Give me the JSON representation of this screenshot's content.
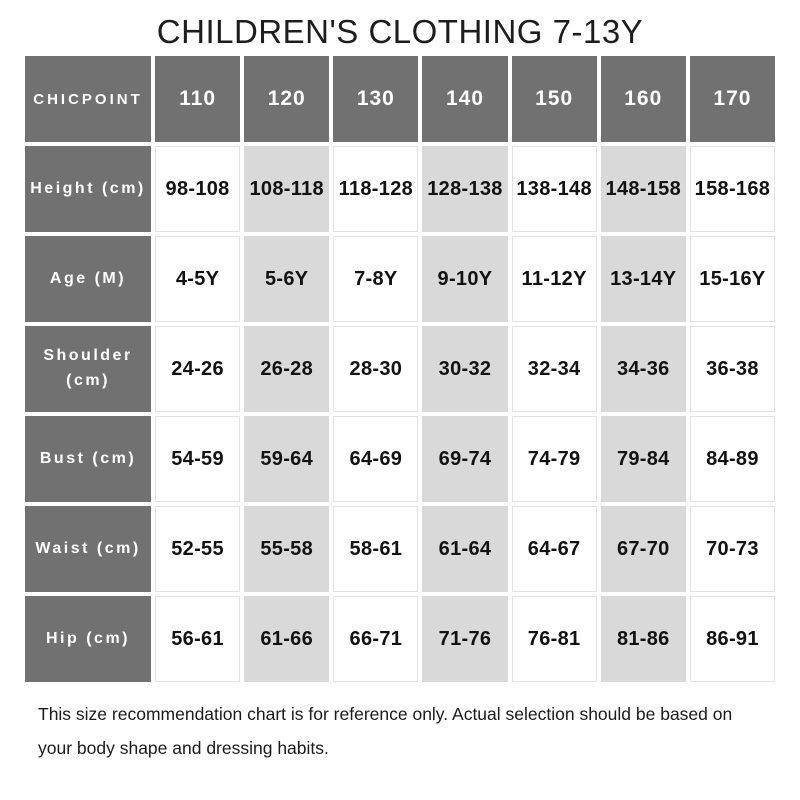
{
  "title": "CHILDREN'S CLOTHING 7-13Y",
  "chart_data": {
    "type": "table",
    "title": "CHILDREN'S CLOTHING 7-13Y",
    "corner_label": "CHICPOINT",
    "columns": [
      "110",
      "120",
      "130",
      "140",
      "150",
      "160",
      "170"
    ],
    "highlighted_columns": [
      "120",
      "140",
      "160"
    ],
    "rows": [
      {
        "label": "Height (cm)",
        "values": [
          "98-108",
          "108-118",
          "118-128",
          "128-138",
          "138-148",
          "148-158",
          "158-168"
        ]
      },
      {
        "label": "Age (M)",
        "values": [
          "4-5Y",
          "5-6Y",
          "7-8Y",
          "9-10Y",
          "11-12Y",
          "13-14Y",
          "15-16Y"
        ]
      },
      {
        "label": "Shoulder (cm)",
        "values": [
          "24-26",
          "26-28",
          "28-30",
          "30-32",
          "32-34",
          "34-36",
          "36-38"
        ]
      },
      {
        "label": "Bust (cm)",
        "values": [
          "54-59",
          "59-64",
          "64-69",
          "69-74",
          "74-79",
          "79-84",
          "84-89"
        ]
      },
      {
        "label": "Waist (cm)",
        "values": [
          "52-55",
          "55-58",
          "58-61",
          "61-64",
          "64-67",
          "67-70",
          "70-73"
        ]
      },
      {
        "label": "Hip (cm)",
        "values": [
          "56-61",
          "61-66",
          "66-71",
          "71-76",
          "76-81",
          "81-86",
          "86-91"
        ]
      }
    ]
  },
  "footer_note": "This size recommendation chart is for reference only. Actual selection should be based on your body shape and dressing habits.",
  "colors": {
    "header_bg": "#717171",
    "alt_cell_bg": "#d9d9d9",
    "cell_border": "#e3e3e3",
    "label_text": "#ffffff",
    "value_text": "#121212",
    "title_text": "#1d1d1d"
  }
}
